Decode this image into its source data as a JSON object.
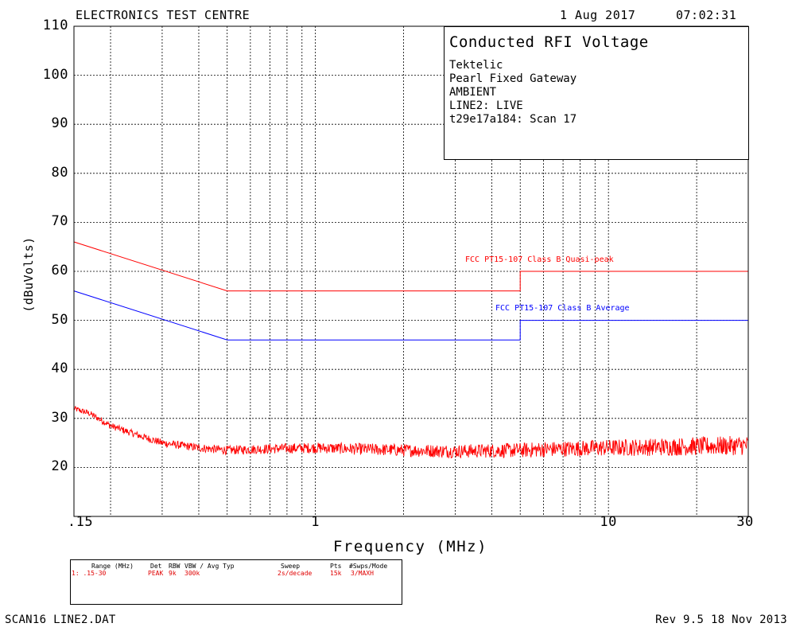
{
  "header": {
    "lab_name": "ELECTRONICS TEST CENTRE",
    "date": "1 Aug 2017",
    "time": "07:02:31"
  },
  "info": {
    "title": "Conducted RFI Voltage",
    "lines": [
      "Tektelic",
      "Pearl Fixed Gateway",
      "AMBIENT",
      "LINE2: LIVE",
      "t29e17a184: Scan 17"
    ]
  },
  "colors": {
    "peak": "#ff0000",
    "average_limit": "#0000ff",
    "axes": "#000000"
  },
  "chart_data": {
    "type": "line",
    "title": "Conducted RFI Voltage",
    "xlabel": "Frequency (MHz)",
    "ylabel": "(dBuVolts)",
    "x_scale": "log",
    "xlim": [
      0.15,
      30
    ],
    "ylim": [
      10,
      110
    ],
    "grid": true,
    "x_tick_labels": [
      ".15",
      "1",
      "10",
      "30"
    ],
    "x_tick_values": [
      0.15,
      1,
      10,
      30
    ],
    "y_tick_labels": [
      "110",
      "100",
      "90",
      "80",
      "70",
      "60",
      "50",
      "40",
      "30",
      "20"
    ],
    "y_tick_values": [
      110,
      100,
      90,
      80,
      70,
      60,
      50,
      40,
      30,
      20
    ],
    "series": [
      {
        "name": "FCC PT15-107 Class B Quasi-peak",
        "label_text": "FCC PT15-107 Class B Quasi-peak",
        "color": "#ff0000",
        "x": [
          0.15,
          0.5,
          5,
          5,
          30
        ],
        "y": [
          66,
          56,
          56,
          60,
          60
        ]
      },
      {
        "name": "FCC PT15-107 Class B Average",
        "label_text": "FCC PT15-107 Class B Average",
        "color": "#0000ff",
        "x": [
          0.15,
          0.5,
          5,
          5,
          30
        ],
        "y": [
          56,
          46,
          46,
          50,
          50
        ]
      },
      {
        "color": "#ff0000",
        "x": [
          0.15,
          0.17,
          0.2,
          0.25,
          0.3,
          0.4,
          0.5,
          0.7,
          1,
          2,
          3,
          5,
          7,
          10,
          20,
          30
        ],
        "y": [
          32,
          31,
          28.5,
          26.5,
          25,
          24,
          23.5,
          23.8,
          24,
          23.5,
          23.3,
          23.5,
          23.8,
          24,
          24.3,
          24.5
        ]
      }
    ]
  },
  "settings_table": {
    "headers": [
      "Range (MHz)",
      "Det",
      "RBW",
      "VBW / Avg Typ",
      "Sweep",
      "Pts",
      "#Swps/Mode"
    ],
    "row": [
      "1: .15-30",
      "PEAK",
      "9k",
      "300k",
      "2s/decade",
      "15k",
      "3/MAXH"
    ]
  },
  "footer": {
    "file": "SCAN16 LINE2.DAT",
    "revision": "Rev 9.5 18 Nov 2013"
  }
}
